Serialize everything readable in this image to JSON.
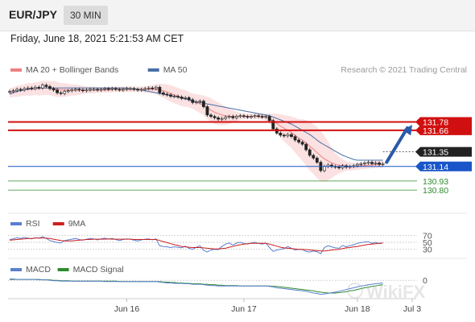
{
  "header": {
    "symbol": "EUR/JPY",
    "timeframe": "30 MIN"
  },
  "datetime": "Friday, June 18, 2021 5:21:53 AM CET",
  "copyright": "Research © 2021 Trading Central",
  "watermark": "WikiFX",
  "colors": {
    "bollinger": "#f08080",
    "bollinger_fill": "#f7c8c8",
    "ma50": "#4a6fa5",
    "resistance": "#d01010",
    "support_blue": "#1a56c8",
    "support_green": "#2e8b2e",
    "current": "#222222",
    "rsi": "#5a7fd0",
    "rsi_ma": "#cc2020",
    "macd": "#5a7fd0",
    "macd_signal": "#2e8b2e",
    "candle": "#222222",
    "arrow": "#2a5aa8"
  },
  "chart_data": [
    {
      "type": "candlestick",
      "legend": [
        {
          "name": "MA 20 + Bollinger Bands",
          "color": "#f08080"
        },
        {
          "name": "MA 50",
          "color": "#4a6fa5"
        }
      ],
      "x_tick_labels": [
        "Jun 16",
        "Jun 17",
        "Jun 18",
        "Jul 3"
      ],
      "x_tick_index": [
        32,
        64,
        95,
        110
      ],
      "ylim": [
        130.5,
        132.4
      ],
      "close": [
        132.22,
        132.23,
        132.25,
        132.24,
        132.26,
        132.27,
        132.26,
        132.28,
        132.27,
        132.31,
        132.29,
        132.26,
        132.24,
        132.2,
        132.19,
        132.22,
        132.23,
        132.24,
        132.25,
        132.24,
        132.23,
        132.24,
        132.25,
        132.25,
        132.24,
        132.25,
        132.26,
        132.25,
        132.26,
        132.25,
        132.24,
        132.25,
        132.26,
        132.26,
        132.25,
        132.24,
        132.25,
        132.26,
        132.27,
        132.26,
        132.28,
        132.2,
        132.18,
        132.17,
        132.15,
        132.15,
        132.14,
        132.12,
        132.13,
        132.1,
        132.06,
        132.07,
        132.08,
        132.0,
        131.88,
        131.86,
        131.84,
        131.82,
        131.83,
        131.85,
        131.86,
        131.84,
        131.86,
        131.87,
        131.86,
        131.85,
        131.86,
        131.87,
        131.86,
        131.85,
        131.86,
        131.8,
        131.68,
        131.62,
        131.59,
        131.58,
        131.6,
        131.57,
        131.52,
        131.49,
        131.46,
        131.38,
        131.3,
        131.26,
        131.2,
        131.08,
        131.14,
        131.16,
        131.14,
        131.13,
        131.12,
        131.15,
        131.13,
        131.14,
        131.15,
        131.17,
        131.18,
        131.19,
        131.2,
        131.18,
        131.19,
        131.17,
        131.18
      ],
      "ma20": [
        132.2,
        132.21,
        132.22,
        132.23,
        132.24,
        132.25,
        132.25,
        132.26,
        132.26,
        132.27,
        132.27,
        132.27,
        132.26,
        132.25,
        132.24,
        132.24,
        132.24,
        132.24,
        132.24,
        132.24,
        132.24,
        132.24,
        132.24,
        132.24,
        132.24,
        132.24,
        132.24,
        132.24,
        132.25,
        132.25,
        132.25,
        132.25,
        132.25,
        132.25,
        132.25,
        132.25,
        132.25,
        132.25,
        132.25,
        132.25,
        132.25,
        132.24,
        132.23,
        132.21,
        132.19,
        132.17,
        132.15,
        132.13,
        132.12,
        132.1,
        132.08,
        132.06,
        132.04,
        132.02,
        131.98,
        131.95,
        131.92,
        131.9,
        131.88,
        131.87,
        131.86,
        131.86,
        131.86,
        131.86,
        131.86,
        131.86,
        131.86,
        131.86,
        131.86,
        131.86,
        131.85,
        131.83,
        131.79,
        131.76,
        131.72,
        131.69,
        131.66,
        131.63,
        131.59,
        131.55,
        131.52,
        131.48,
        131.43,
        131.39,
        131.34,
        131.29,
        131.25,
        131.22,
        131.19,
        131.17,
        131.16,
        131.15,
        131.15,
        131.14,
        131.14,
        131.14,
        131.15,
        131.15,
        131.16,
        131.16,
        131.17,
        131.17,
        131.17
      ],
      "bb_width": [
        0.07,
        0.07,
        0.08,
        0.08,
        0.08,
        0.09,
        0.09,
        0.09,
        0.1,
        0.1,
        0.1,
        0.1,
        0.11,
        0.11,
        0.1,
        0.1,
        0.09,
        0.08,
        0.08,
        0.07,
        0.06,
        0.05,
        0.05,
        0.05,
        0.04,
        0.04,
        0.04,
        0.04,
        0.04,
        0.04,
        0.04,
        0.04,
        0.04,
        0.04,
        0.04,
        0.04,
        0.04,
        0.05,
        0.05,
        0.06,
        0.07,
        0.09,
        0.1,
        0.11,
        0.12,
        0.12,
        0.12,
        0.12,
        0.12,
        0.11,
        0.11,
        0.12,
        0.13,
        0.14,
        0.16,
        0.17,
        0.17,
        0.16,
        0.15,
        0.13,
        0.11,
        0.09,
        0.07,
        0.05,
        0.04,
        0.04,
        0.04,
        0.04,
        0.04,
        0.04,
        0.05,
        0.07,
        0.11,
        0.14,
        0.17,
        0.19,
        0.21,
        0.23,
        0.25,
        0.27,
        0.3,
        0.33,
        0.35,
        0.36,
        0.37,
        0.36,
        0.33,
        0.28,
        0.22,
        0.16,
        0.12,
        0.09,
        0.07,
        0.06,
        0.05,
        0.05,
        0.05,
        0.05,
        0.05,
        0.05,
        0.05,
        0.05,
        0.05
      ],
      "ma50": [
        132.18,
        132.2,
        132.22,
        132.23,
        132.24,
        132.25,
        132.26,
        132.26,
        132.27,
        132.27,
        132.27,
        132.27,
        132.27,
        132.27,
        132.27,
        132.27,
        132.27,
        132.27,
        132.27,
        132.27,
        132.27,
        132.27,
        132.27,
        132.27,
        132.27,
        132.27,
        132.27,
        132.27,
        132.27,
        132.27,
        132.27,
        132.27,
        132.27,
        132.26,
        132.26,
        132.25,
        132.24,
        132.23,
        132.22,
        132.21,
        132.2,
        132.19,
        132.18,
        132.17,
        132.16,
        132.15,
        132.14,
        132.12,
        132.11,
        132.1,
        132.08,
        132.07,
        132.06,
        132.05,
        132.04,
        132.03,
        132.02,
        132.01,
        132.0,
        131.99,
        131.98,
        131.97,
        131.96,
        131.95,
        131.94,
        131.93,
        131.92,
        131.91,
        131.9,
        131.89,
        131.88,
        131.87,
        131.85,
        131.83,
        131.81,
        131.79,
        131.77,
        131.75,
        131.72,
        131.69,
        131.66,
        131.63,
        131.6,
        131.56,
        131.52,
        131.48,
        131.45,
        131.42,
        131.39,
        131.36,
        131.33,
        131.3,
        131.28,
        131.26,
        131.24,
        131.23,
        131.23,
        131.23,
        131.23,
        131.23,
        131.23,
        131.23,
        131.23
      ],
      "levels": [
        {
          "label": "131.78",
          "value": 131.78,
          "style": "resistance"
        },
        {
          "label": "131.66",
          "value": 131.66,
          "style": "resistance"
        },
        {
          "label": "131.35",
          "value": 131.35,
          "style": "current"
        },
        {
          "label": "131.14",
          "value": 131.14,
          "style": "support_blue"
        },
        {
          "label": "130.93",
          "value": 130.93,
          "style": "support_green"
        },
        {
          "label": "130.80",
          "value": 130.8,
          "style": "support_green"
        }
      ],
      "forecast_arrow": {
        "from": [
          103,
          131.2
        ],
        "to": [
          110,
          131.74
        ]
      }
    },
    {
      "type": "line",
      "legend": [
        {
          "name": "RSI",
          "color": "#5a7fd0"
        },
        {
          "name": "9MA",
          "color": "#cc2020"
        }
      ],
      "ylim": [
        20,
        80
      ],
      "levels": [
        {
          "label": "70",
          "value": 70
        },
        {
          "label": "50",
          "value": 50
        },
        {
          "label": "30",
          "value": 30
        }
      ],
      "rsi": [
        58,
        60,
        63,
        61,
        64,
        62,
        60,
        63,
        62,
        66,
        61,
        55,
        52,
        49,
        48,
        55,
        57,
        59,
        61,
        58,
        56,
        59,
        61,
        60,
        57,
        60,
        62,
        59,
        61,
        58,
        55,
        58,
        60,
        59,
        56,
        54,
        57,
        59,
        60,
        57,
        60,
        40,
        38,
        37,
        35,
        37,
        36,
        34,
        39,
        33,
        30,
        36,
        40,
        27,
        22,
        28,
        30,
        29,
        38,
        45,
        48,
        42,
        48,
        50,
        47,
        45,
        48,
        50,
        47,
        45,
        48,
        35,
        24,
        28,
        30,
        32,
        38,
        33,
        28,
        30,
        29,
        24,
        22,
        25,
        23,
        17,
        35,
        40,
        37,
        34,
        33,
        41,
        37,
        40,
        43,
        47,
        49,
        51,
        52,
        47,
        50,
        46,
        48
      ],
      "ma9": [
        56,
        57,
        58,
        59,
        60,
        61,
        61,
        62,
        62,
        62,
        62,
        61,
        59,
        57,
        55,
        54,
        54,
        54,
        55,
        56,
        57,
        58,
        58,
        59,
        59,
        59,
        59,
        60,
        59,
        59,
        59,
        59,
        59,
        59,
        58,
        58,
        58,
        58,
        58,
        58,
        58,
        55,
        52,
        49,
        46,
        43,
        41,
        38,
        37,
        36,
        35,
        35,
        35,
        34,
        33,
        32,
        31,
        31,
        32,
        33,
        36,
        38,
        41,
        43,
        45,
        46,
        47,
        47,
        47,
        47,
        47,
        45,
        42,
        39,
        36,
        34,
        33,
        32,
        31,
        30,
        30,
        29,
        28,
        27,
        26,
        25,
        25,
        26,
        28,
        29,
        30,
        32,
        34,
        35,
        37,
        38,
        40,
        42,
        44,
        45,
        46,
        47,
        48
      ]
    },
    {
      "type": "line",
      "legend": [
        {
          "name": "MACD",
          "color": "#5a7fd0"
        },
        {
          "name": "MACD Signal",
          "color": "#2e8b2e"
        }
      ],
      "ylim": [
        -0.4,
        0.15
      ],
      "levels": [
        {
          "label": "0",
          "value": 0
        }
      ],
      "macd": [
        0.03,
        0.03,
        0.02,
        0.02,
        0.02,
        0.02,
        0.02,
        0.02,
        0.01,
        0.01,
        0.01,
        0.0,
        -0.01,
        -0.01,
        -0.02,
        -0.02,
        -0.02,
        -0.02,
        -0.02,
        -0.02,
        -0.02,
        -0.02,
        -0.02,
        -0.02,
        -0.02,
        -0.02,
        -0.03,
        -0.03,
        -0.03,
        -0.03,
        -0.03,
        -0.03,
        -0.03,
        -0.03,
        -0.03,
        -0.03,
        -0.03,
        -0.03,
        -0.03,
        -0.03,
        -0.03,
        -0.04,
        -0.05,
        -0.06,
        -0.06,
        -0.07,
        -0.07,
        -0.07,
        -0.08,
        -0.08,
        -0.09,
        -0.09,
        -0.09,
        -0.1,
        -0.11,
        -0.12,
        -0.12,
        -0.13,
        -0.13,
        -0.13,
        -0.13,
        -0.13,
        -0.13,
        -0.13,
        -0.13,
        -0.13,
        -0.13,
        -0.13,
        -0.13,
        -0.13,
        -0.13,
        -0.14,
        -0.15,
        -0.17,
        -0.18,
        -0.19,
        -0.2,
        -0.21,
        -0.22,
        -0.23,
        -0.24,
        -0.25,
        -0.27,
        -0.29,
        -0.3,
        -0.32,
        -0.31,
        -0.3,
        -0.28,
        -0.27,
        -0.25,
        -0.23,
        -0.21,
        -0.19,
        -0.17,
        -0.15,
        -0.13,
        -0.12,
        -0.1,
        -0.09,
        -0.08,
        -0.07,
        -0.06
      ],
      "signal": [
        0.02,
        0.02,
        0.02,
        0.02,
        0.02,
        0.02,
        0.02,
        0.02,
        0.02,
        0.01,
        0.01,
        0.01,
        0.0,
        0.0,
        -0.01,
        -0.01,
        -0.01,
        -0.02,
        -0.02,
        -0.02,
        -0.02,
        -0.02,
        -0.02,
        -0.02,
        -0.02,
        -0.02,
        -0.02,
        -0.02,
        -0.02,
        -0.02,
        -0.03,
        -0.03,
        -0.03,
        -0.03,
        -0.03,
        -0.03,
        -0.03,
        -0.03,
        -0.03,
        -0.03,
        -0.03,
        -0.03,
        -0.04,
        -0.04,
        -0.05,
        -0.05,
        -0.06,
        -0.06,
        -0.07,
        -0.07,
        -0.08,
        -0.08,
        -0.08,
        -0.09,
        -0.09,
        -0.1,
        -0.1,
        -0.11,
        -0.11,
        -0.12,
        -0.12,
        -0.12,
        -0.12,
        -0.13,
        -0.13,
        -0.13,
        -0.13,
        -0.13,
        -0.13,
        -0.13,
        -0.13,
        -0.13,
        -0.14,
        -0.14,
        -0.15,
        -0.16,
        -0.17,
        -0.18,
        -0.19,
        -0.2,
        -0.21,
        -0.22,
        -0.23,
        -0.24,
        -0.26,
        -0.27,
        -0.28,
        -0.29,
        -0.29,
        -0.29,
        -0.28,
        -0.27,
        -0.26,
        -0.24,
        -0.23,
        -0.21,
        -0.19,
        -0.17,
        -0.16,
        -0.14,
        -0.13,
        -0.11,
        -0.1
      ]
    }
  ]
}
